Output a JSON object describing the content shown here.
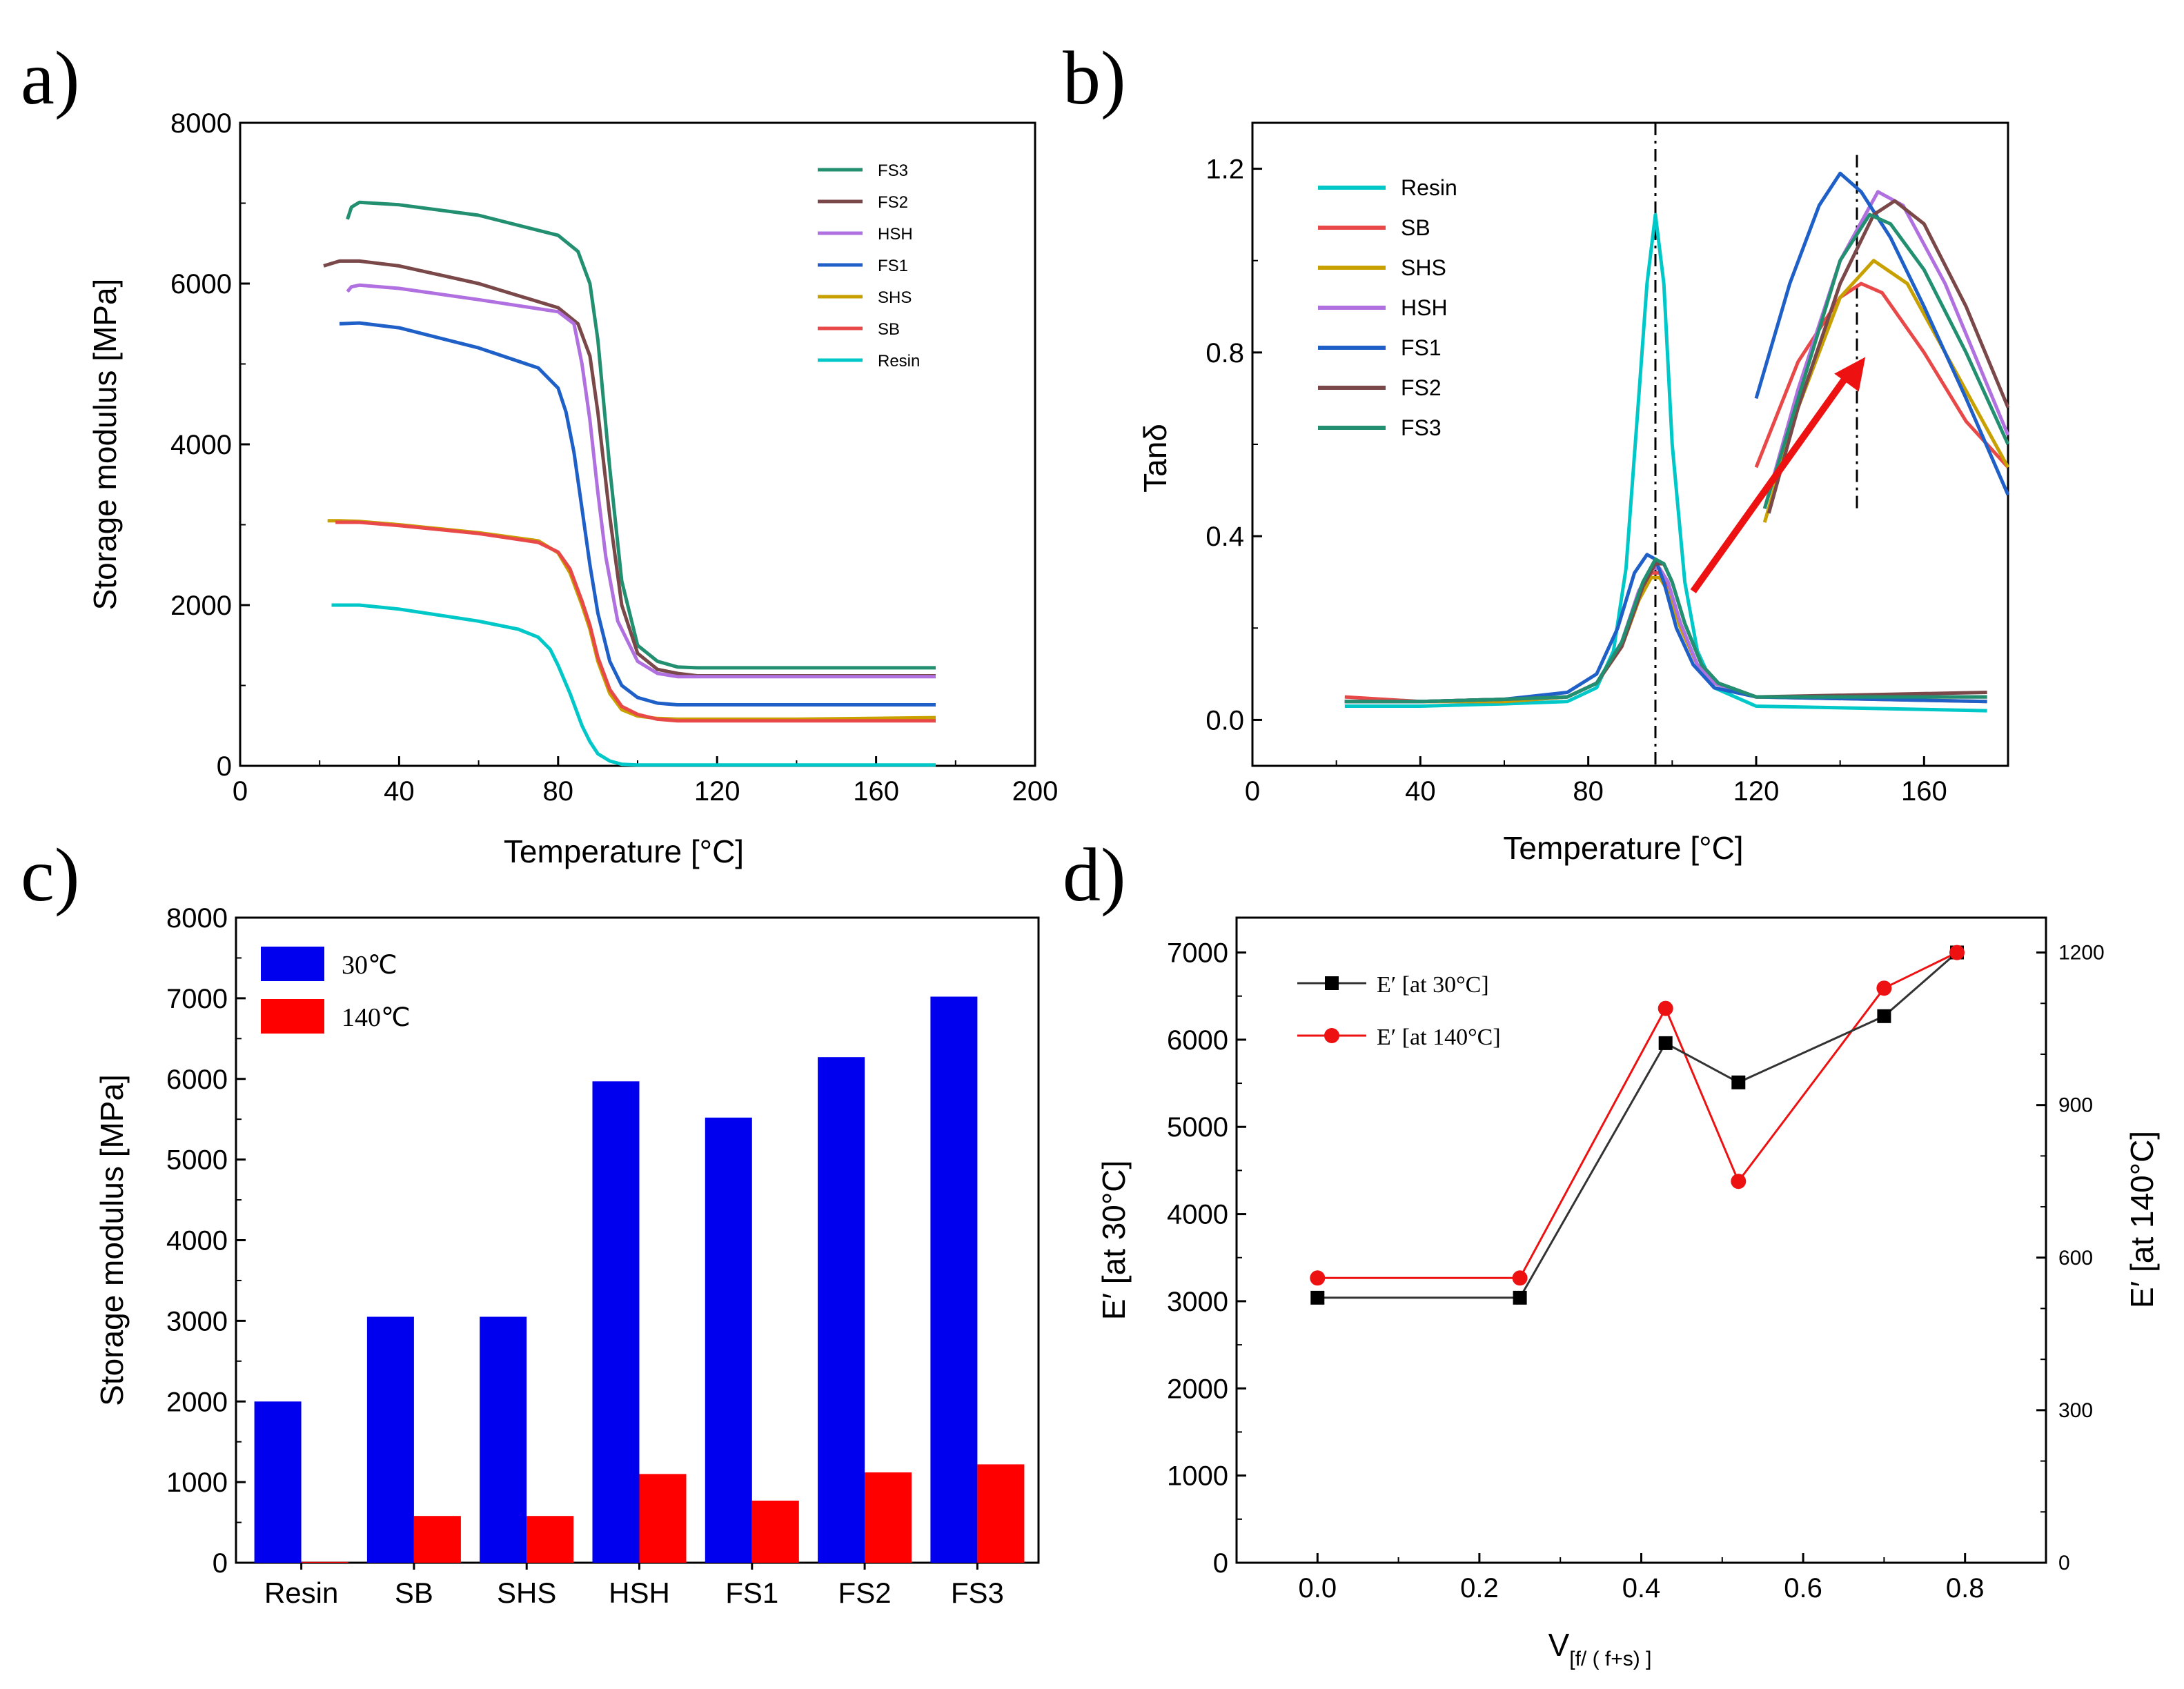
{
  "colors": {
    "Resin": "#00c8c8",
    "SB": "#e84848",
    "SHS": "#c8a000",
    "HSH": "#b070e0",
    "FS1": "#1f60c8",
    "FS2": "#7a4848",
    "FS3": "#229070",
    "bar30": "#0000ee",
    "bar140": "#ff0000",
    "d_black": "#000000",
    "d_red": "#ee1111",
    "arrow": "#ee1111"
  },
  "chart_data": [
    {
      "panel": "a)",
      "type": "line",
      "xlabel": "Temperature [°C]",
      "ylabel": "Storage modulus [MPa]",
      "xlim": [
        0,
        200
      ],
      "ylim": [
        0,
        8000
      ],
      "xticks": [
        "0",
        "40",
        "80",
        "120",
        "160",
        "200"
      ],
      "yticks": [
        "0",
        "2000",
        "4000",
        "6000",
        "8000"
      ],
      "legend": [
        "FS3",
        "FS2",
        "HSH",
        "FS1",
        "SHS",
        "SB",
        "Resin"
      ],
      "series": [
        {
          "name": "FS3",
          "x": [
            27,
            28,
            30,
            40,
            60,
            80,
            85,
            88,
            90,
            93,
            96,
            100,
            105,
            110,
            115,
            120,
            175
          ],
          "y": [
            6800,
            6950,
            7010,
            6980,
            6850,
            6600,
            6400,
            6000,
            5300,
            3700,
            2300,
            1500,
            1300,
            1230,
            1220,
            1220,
            1220
          ]
        },
        {
          "name": "FS2",
          "x": [
            21,
            25,
            30,
            40,
            60,
            80,
            85,
            88,
            90,
            93,
            96,
            100,
            105,
            110,
            115,
            175
          ],
          "y": [
            6220,
            6280,
            6280,
            6220,
            6000,
            5700,
            5500,
            5100,
            4400,
            3100,
            2000,
            1400,
            1200,
            1150,
            1120,
            1120
          ]
        },
        {
          "name": "HSH",
          "x": [
            27,
            28,
            30,
            40,
            60,
            80,
            84,
            86,
            88,
            90,
            92,
            95,
            100,
            105,
            110,
            175
          ],
          "y": [
            5900,
            5960,
            5980,
            5940,
            5800,
            5650,
            5500,
            5000,
            4300,
            3400,
            2600,
            1800,
            1300,
            1150,
            1110,
            1110
          ]
        },
        {
          "name": "FS1",
          "x": [
            25,
            30,
            40,
            60,
            75,
            80,
            82,
            84,
            86,
            88,
            90,
            93,
            96,
            100,
            105,
            110,
            175
          ],
          "y": [
            5500,
            5510,
            5450,
            5200,
            4950,
            4700,
            4400,
            3900,
            3200,
            2500,
            1900,
            1300,
            1000,
            850,
            780,
            760,
            760
          ]
        },
        {
          "name": "SHS",
          "x": [
            22,
            25,
            30,
            40,
            60,
            75,
            80,
            83,
            86,
            88,
            90,
            93,
            96,
            100,
            105,
            110,
            120,
            140,
            175
          ],
          "y": [
            3050,
            3050,
            3040,
            3000,
            2900,
            2800,
            2650,
            2400,
            2000,
            1700,
            1300,
            900,
            700,
            620,
            590,
            580,
            580,
            580,
            600
          ]
        },
        {
          "name": "SB",
          "x": [
            24,
            30,
            40,
            60,
            75,
            80,
            83,
            86,
            88,
            90,
            93,
            96,
            100,
            105,
            110,
            120,
            175
          ],
          "y": [
            3030,
            3030,
            2990,
            2890,
            2780,
            2660,
            2450,
            2050,
            1750,
            1350,
            950,
            740,
            640,
            580,
            560,
            560,
            560
          ]
        },
        {
          "name": "Resin",
          "x": [
            23,
            30,
            40,
            60,
            70,
            75,
            78,
            80,
            83,
            86,
            88,
            90,
            93,
            96,
            100,
            175
          ],
          "y": [
            2000,
            2000,
            1950,
            1800,
            1700,
            1600,
            1450,
            1250,
            900,
            500,
            300,
            150,
            60,
            20,
            10,
            10
          ]
        }
      ]
    },
    {
      "panel": "b)",
      "type": "line",
      "xlabel": "Temperature [°C]",
      "ylabel": "Tanδ",
      "xlim": [
        0,
        180
      ],
      "ylim": [
        -0.1,
        1.3
      ],
      "xticks": [
        "0",
        "40",
        "80",
        "120",
        "160"
      ],
      "yticks": [
        "0.0",
        "0.4",
        "0.8",
        "1.2"
      ],
      "legend": [
        "Resin",
        "SB",
        "SHS",
        "HSH",
        "FS1",
        "FS2",
        "FS3"
      ],
      "vlines_x": [
        96,
        144
      ],
      "series": [
        {
          "name": "Resin",
          "x": [
            22,
            40,
            60,
            75,
            82,
            86,
            89,
            92,
            94,
            96,
            98,
            100,
            103,
            106,
            110,
            120,
            175
          ],
          "y": [
            0.03,
            0.03,
            0.035,
            0.04,
            0.07,
            0.15,
            0.33,
            0.7,
            0.95,
            1.1,
            0.95,
            0.6,
            0.3,
            0.15,
            0.07,
            0.03,
            0.02
          ]
        },
        {
          "name": "SB",
          "x": [
            22,
            40,
            60,
            75,
            82,
            88,
            92,
            95,
            97,
            99,
            102,
            106,
            110,
            120,
            175
          ],
          "y": [
            0.05,
            0.04,
            0.04,
            0.05,
            0.08,
            0.16,
            0.26,
            0.32,
            0.32,
            0.29,
            0.2,
            0.12,
            0.08,
            0.05,
            0.04
          ]
        },
        {
          "name": "SHS",
          "x": [
            22,
            40,
            60,
            75,
            82,
            88,
            92,
            95,
            97,
            99,
            102,
            106,
            110,
            120,
            175
          ],
          "y": [
            0.04,
            0.04,
            0.04,
            0.05,
            0.08,
            0.16,
            0.26,
            0.31,
            0.31,
            0.28,
            0.2,
            0.12,
            0.08,
            0.05,
            0.05
          ]
        },
        {
          "name": "HSH",
          "x": [
            22,
            40,
            60,
            75,
            82,
            88,
            92,
            95,
            97,
            99,
            102,
            106,
            110,
            120,
            175
          ],
          "y": [
            0.04,
            0.04,
            0.045,
            0.05,
            0.08,
            0.17,
            0.28,
            0.33,
            0.33,
            0.3,
            0.21,
            0.12,
            0.08,
            0.05,
            0.05
          ]
        },
        {
          "name": "FS1",
          "x": [
            22,
            40,
            60,
            75,
            82,
            87,
            91,
            94,
            96,
            98,
            101,
            105,
            110,
            120,
            175
          ],
          "y": [
            0.04,
            0.04,
            0.045,
            0.06,
            0.1,
            0.2,
            0.32,
            0.36,
            0.35,
            0.3,
            0.2,
            0.12,
            0.07,
            0.05,
            0.04
          ]
        },
        {
          "name": "FS2",
          "x": [
            22,
            40,
            60,
            75,
            82,
            88,
            93,
            96,
            98,
            100,
            103,
            107,
            111,
            120,
            175
          ],
          "y": [
            0.04,
            0.04,
            0.045,
            0.05,
            0.08,
            0.16,
            0.29,
            0.34,
            0.34,
            0.3,
            0.21,
            0.12,
            0.08,
            0.05,
            0.06
          ]
        },
        {
          "name": "FS3",
          "x": [
            22,
            40,
            60,
            75,
            82,
            88,
            93,
            96,
            98,
            100,
            103,
            107,
            111,
            120,
            175
          ],
          "y": [
            0.04,
            0.04,
            0.045,
            0.05,
            0.08,
            0.17,
            0.3,
            0.35,
            0.34,
            0.3,
            0.21,
            0.12,
            0.08,
            0.05,
            0.05
          ]
        }
      ],
      "inset_series": [
        {
          "name": "SB",
          "x": [
            120,
            130,
            140,
            145,
            150,
            160,
            170,
            180
          ],
          "y": [
            0.55,
            0.78,
            0.92,
            0.95,
            0.93,
            0.8,
            0.65,
            0.55
          ]
        },
        {
          "name": "SHS",
          "x": [
            122,
            130,
            140,
            148,
            156,
            165,
            180
          ],
          "y": [
            0.43,
            0.68,
            0.92,
            1.0,
            0.95,
            0.8,
            0.55
          ]
        },
        {
          "name": "HSH",
          "x": [
            122,
            130,
            140,
            149,
            155,
            165,
            180
          ],
          "y": [
            0.46,
            0.72,
            1.0,
            1.15,
            1.12,
            0.95,
            0.62
          ]
        },
        {
          "name": "FS1",
          "x": [
            120,
            128,
            135,
            140,
            145,
            152,
            160,
            170,
            180
          ],
          "y": [
            0.7,
            0.95,
            1.12,
            1.19,
            1.15,
            1.05,
            0.9,
            0.7,
            0.49
          ]
        },
        {
          "name": "FS2",
          "x": [
            123,
            130,
            140,
            148,
            153,
            160,
            170,
            180
          ],
          "y": [
            0.45,
            0.68,
            0.95,
            1.1,
            1.13,
            1.08,
            0.9,
            0.68
          ]
        },
        {
          "name": "FS3",
          "x": [
            122,
            130,
            140,
            147,
            152,
            160,
            170,
            180
          ],
          "y": [
            0.46,
            0.7,
            1.0,
            1.1,
            1.08,
            0.98,
            0.8,
            0.6
          ]
        }
      ],
      "annotations": [
        "arrow from ~105 °C, 0.28 to ~146 °C, 0.79"
      ]
    },
    {
      "panel": "c)",
      "type": "bar",
      "ylabel": "Storage modulus [MPa]",
      "ylim": [
        0,
        8000
      ],
      "yticks": [
        "0",
        "1000",
        "2000",
        "3000",
        "4000",
        "5000",
        "6000",
        "7000",
        "8000"
      ],
      "categories": [
        "Resin",
        "SB",
        "SHS",
        "HSH",
        "FS1",
        "FS2",
        "FS3"
      ],
      "series": [
        {
          "name": "30℃",
          "values": [
            2000,
            3050,
            3050,
            5970,
            5520,
            6270,
            7020
          ]
        },
        {
          "name": "140℃",
          "values": [
            10,
            580,
            580,
            1100,
            770,
            1120,
            1220
          ]
        }
      ]
    },
    {
      "panel": "d)",
      "type": "line",
      "xlabel": "V",
      "xlabel_sub": "[f/ ( f+s) ]",
      "ylabel": "E′ [at 30°C]",
      "ylabel_right": "E′ [at 140°C]",
      "xlim": [
        -0.1,
        0.9
      ],
      "ylim": [
        0,
        7400
      ],
      "ylim_right": [
        0,
        1268.6
      ],
      "xticks": [
        "0.0",
        "0.2",
        "0.4",
        "0.6",
        "0.8"
      ],
      "yticks": [
        "0",
        "1000",
        "2000",
        "3000",
        "4000",
        "5000",
        "6000",
        "7000"
      ],
      "yticks_right": [
        "0",
        "300",
        "600",
        "900",
        "1200"
      ],
      "series": [
        {
          "name": "E′ [at 30°C]",
          "axis": "left",
          "x": [
            0.0,
            0.25,
            0.43,
            0.52,
            0.7,
            0.79
          ],
          "y": [
            3040,
            3040,
            5960,
            5510,
            6270,
            7000
          ]
        },
        {
          "name": "E′ [at 140°C]",
          "axis": "right",
          "x": [
            0.0,
            0.25,
            0.43,
            0.52,
            0.7,
            0.79
          ],
          "y": [
            560,
            560,
            1090,
            750,
            1130,
            1200
          ]
        }
      ]
    }
  ]
}
